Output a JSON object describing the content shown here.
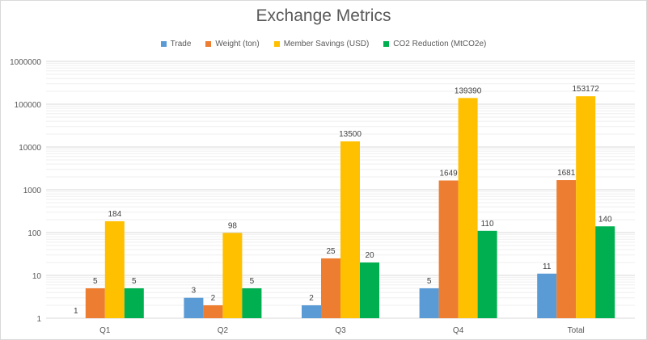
{
  "chart_data": {
    "type": "bar",
    "title": "Exchange Metrics",
    "categories": [
      "Q1",
      "Q2",
      "Q3",
      "Q4",
      "Total"
    ],
    "series": [
      {
        "name": "Trade",
        "color": "#5b9bd5",
        "values": [
          1,
          3,
          2,
          5,
          11
        ]
      },
      {
        "name": "Weight (ton)",
        "color": "#ed7d31",
        "values": [
          5,
          2,
          25,
          1649,
          1681
        ]
      },
      {
        "name": "Member Savings (USD)",
        "color": "#ffc000",
        "values": [
          184,
          98,
          13500,
          139390,
          153172
        ]
      },
      {
        "name": "CO2 Reduction (MtCO2e)",
        "color": "#00b050",
        "values": [
          5,
          5,
          20,
          110,
          140
        ]
      }
    ],
    "yscale": "log",
    "ylim": [
      1,
      1000000
    ],
    "yticks": [
      "1",
      "10",
      "100",
      "1000",
      "10000",
      "100000",
      "1000000"
    ],
    "xlabel": "",
    "ylabel": "",
    "grid": true,
    "legend_position": "top"
  }
}
